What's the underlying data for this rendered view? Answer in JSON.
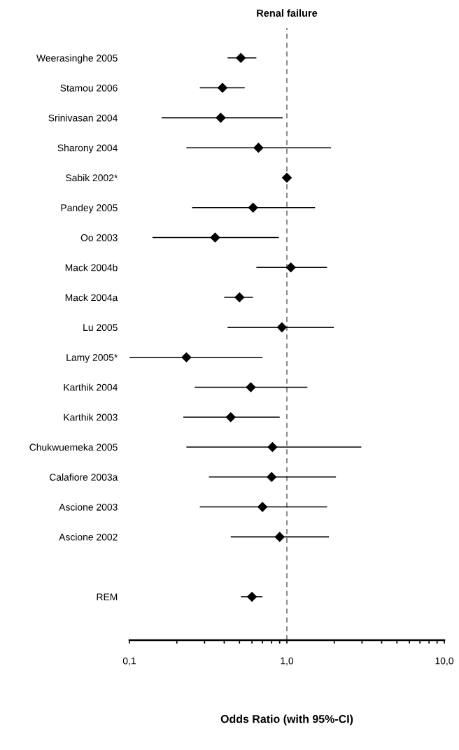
{
  "chart_data": {
    "type": "scatter",
    "title": "Renal failure",
    "xlabel": "Odds Ratio (with 95%-CI)",
    "categories": [
      "Weerasinghe 2005",
      "Stamou 2006",
      "Srinivasan 2004",
      "Sharony 2004",
      "Sabik 2002*",
      "Pandey 2005",
      "Oo 2003",
      "Mack 2004b",
      "Mack 2004a",
      "Lu 2005",
      "Lamy 2005*",
      "Karthik 2004",
      "Karthik 2003",
      "Chukwuemeka 2005",
      "Calafiore 2003a",
      "Ascione 2003",
      "Ascione 2002",
      null,
      "REM"
    ],
    "orientation": "horizontal",
    "series": [
      {
        "color": "#000000",
        "values": [
          0.51,
          0.39,
          0.38,
          0.66,
          1.0,
          0.61,
          0.35,
          1.06,
          0.5,
          0.93,
          0.23,
          0.59,
          0.44,
          0.81,
          0.8,
          0.7,
          0.9,
          null,
          0.6
        ],
        "errors": [
          [
            0.42,
            0.64
          ],
          [
            0.28,
            0.54
          ],
          [
            0.16,
            0.94
          ],
          [
            0.23,
            1.91
          ],
          null,
          [
            0.25,
            1.51
          ],
          [
            0.14,
            0.89
          ],
          [
            0.64,
            1.8
          ],
          [
            0.4,
            0.61
          ],
          [
            0.42,
            1.99
          ],
          [
            0.1,
            0.7
          ],
          [
            0.26,
            1.35
          ],
          [
            0.22,
            0.9
          ],
          [
            0.23,
            2.97
          ],
          [
            0.32,
            2.05
          ],
          [
            0.28,
            1.8
          ],
          [
            0.44,
            1.85
          ],
          null,
          [
            0.51,
            0.7
          ]
        ]
      }
    ],
    "log": "x",
    "xlim": [
      0.1,
      10
    ],
    "xticks": [
      {
        "value": 0.1,
        "label": "0,1"
      },
      {
        "value": 0.2,
        "label": null
      },
      {
        "value": 0.3,
        "label": null
      },
      {
        "value": 0.4,
        "label": null
      },
      {
        "value": 0.5,
        "label": null
      },
      {
        "value": 0.6,
        "label": null
      },
      {
        "value": 0.7,
        "label": null
      },
      {
        "value": 0.8,
        "label": null
      },
      {
        "value": 0.9,
        "label": null
      },
      {
        "value": 1,
        "label": "1,0"
      },
      {
        "value": 2,
        "label": null
      },
      {
        "value": 3,
        "label": null
      },
      {
        "value": 4,
        "label": null
      },
      {
        "value": 5,
        "label": null
      },
      {
        "value": 6,
        "label": null
      },
      {
        "value": 7,
        "label": null
      },
      {
        "value": 8,
        "label": null
      },
      {
        "value": 9,
        "label": null
      },
      {
        "value": 10,
        "label": "10,0"
      }
    ],
    "ref_lines": [
      {
        "axis": "x",
        "value": 1,
        "color": "#808080",
        "line_style": "dashed"
      }
    ],
    "marker": "diamond",
    "grid": false,
    "legend": false
  }
}
